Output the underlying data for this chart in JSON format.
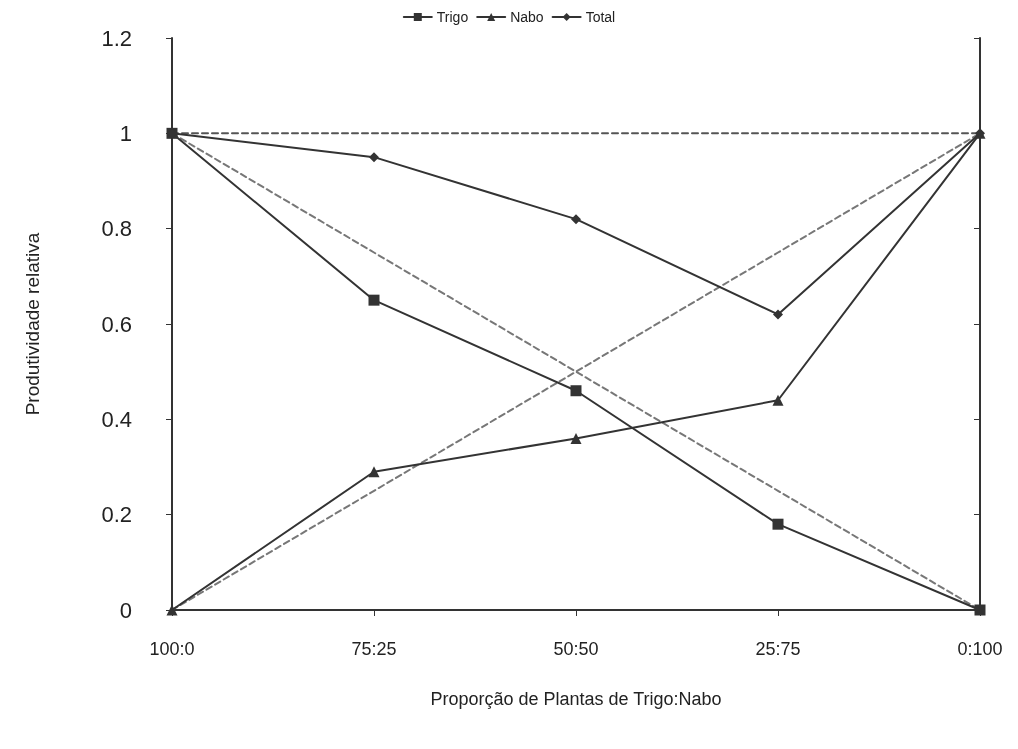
{
  "chart_data": {
    "type": "line",
    "xlabel": "Proporção de Plantas de Trigo:Nabo",
    "ylabel": "Produtividade relativa",
    "categories": [
      "100:0",
      "75:25",
      "50:50",
      "25:75",
      "0:100"
    ],
    "series": [
      {
        "name": "Trigo",
        "color": "#333333",
        "marker": "square",
        "line_style": "solid",
        "values": [
          1,
          0.65,
          0.46,
          0.18,
          0
        ]
      },
      {
        "name": "Nabo",
        "color": "#333333",
        "marker": "triangle",
        "line_style": "solid",
        "values": [
          0,
          0.29,
          0.36,
          0.44,
          1
        ]
      },
      {
        "name": "Total",
        "color": "#333333",
        "marker": "diamond",
        "line_style": "solid",
        "values": [
          1,
          0.95,
          0.82,
          0.62,
          1
        ]
      },
      {
        "color": "#555555",
        "marker": "none",
        "line_style": "dashed",
        "values": [
          1,
          1,
          1,
          1,
          1
        ]
      },
      {
        "color": "#777777",
        "marker": "none",
        "line_style": "dashed",
        "values": [
          1,
          0.75,
          0.5,
          0.25,
          0
        ]
      },
      {
        "color": "#777777",
        "marker": "none",
        "line_style": "dashed",
        "values": [
          0,
          0.25,
          0.5,
          0.75,
          1
        ]
      }
    ],
    "ylim": [
      0,
      1.2
    ],
    "yticks": [
      0,
      0.2,
      0.4,
      0.6,
      0.8,
      1,
      1.2
    ],
    "grid": false,
    "legend": "top"
  }
}
